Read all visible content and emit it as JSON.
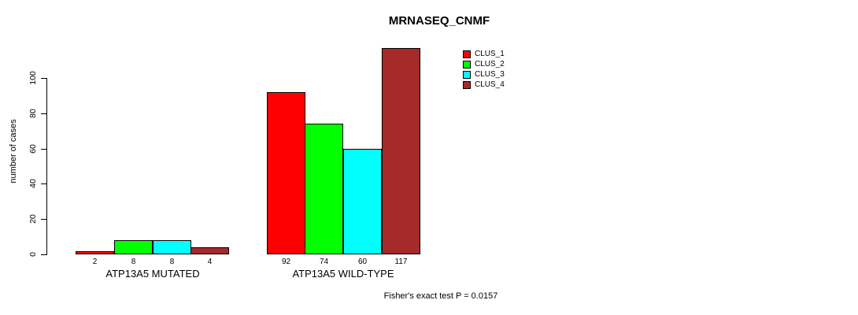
{
  "chart_data": {
    "type": "bar",
    "title": "MRNASEQ_CNMF",
    "ylabel": "number of cases",
    "xlabel": "",
    "groups": [
      {
        "label": "ATP13A5 MUTATED",
        "values": [
          2,
          8,
          8,
          4
        ]
      },
      {
        "label": "ATP13A5 WILD-TYPE",
        "values": [
          92,
          74,
          60,
          117
        ]
      }
    ],
    "series": [
      "CLUS_1",
      "CLUS_2",
      "CLUS_3",
      "CLUS_4"
    ],
    "series_colors": [
      "#FF0000",
      "#00FF00",
      "#00FFFF",
      "#A52A2A"
    ],
    "yticks": [
      0,
      20,
      40,
      60,
      80,
      100
    ],
    "ylim": [
      0,
      120
    ],
    "grid": false,
    "legend_position": "right",
    "annotation": "Fisher's exact test P = 0.0157"
  }
}
